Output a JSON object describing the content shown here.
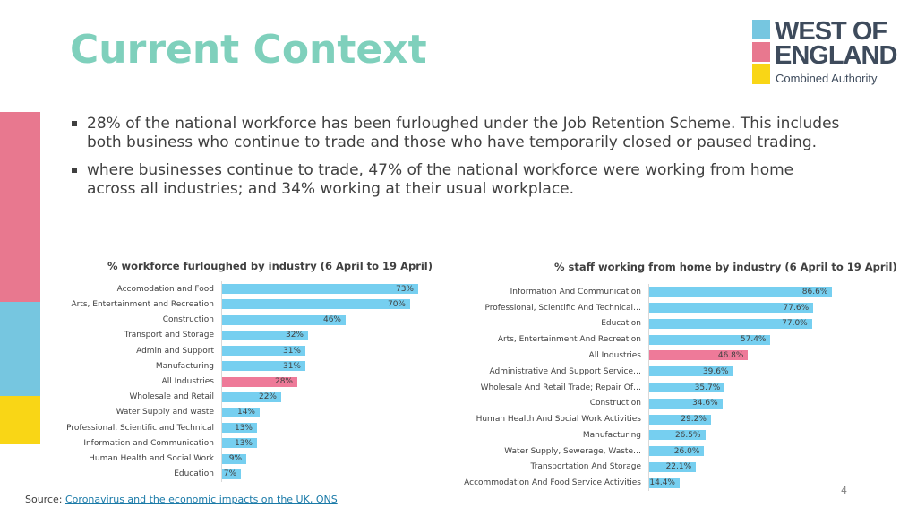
{
  "slide": {
    "title": "Current Context",
    "page_number": "4"
  },
  "logo": {
    "line1": "WEST OF",
    "line2": "ENGLAND",
    "line3": "Combined Authority"
  },
  "bullets": [
    "28% of the national workforce has been furloughed under the Job Retention Scheme. This includes both business who continue to trade and those who have temporarily closed or paused trading.",
    "where businesses continue to trade, 47% of the national workforce were working from home across all industries; and 34% working at their usual workplace."
  ],
  "source": {
    "label": "Source:",
    "link_text": "Coronavirus and the economic impacts on the UK, ONS"
  },
  "colors": {
    "bar": "#76cff0",
    "highlight": "#ee7a99",
    "title": "#7fd0bc"
  },
  "chart_data": [
    {
      "type": "bar",
      "orientation": "horizontal",
      "title": "% workforce furloughed by industry (6 April to 19 April)",
      "categories": [
        "Accomodation and Food",
        "Arts, Entertainment and Recreation",
        "Construction",
        "Transport and Storage",
        "Admin and Support",
        "Manufacturing",
        "All Industries",
        "Wholesale and Retail",
        "Water Supply and waste",
        "Professional, Scientific and Technical",
        "Information and Communication",
        "Human Health and Social Work",
        "Education"
      ],
      "values": [
        73,
        70,
        46,
        32,
        31,
        31,
        28,
        22,
        14,
        13,
        13,
        9,
        7
      ],
      "labels": [
        "73%",
        "70%",
        "46%",
        "32%",
        "31%",
        "31%",
        "28%",
        "22%",
        "14%",
        "13%",
        "13%",
        "9%",
        "7%"
      ],
      "highlight": "All Industries",
      "xlim": [
        0,
        100
      ]
    },
    {
      "type": "bar",
      "orientation": "horizontal",
      "title": "% staff working from home by industry (6 April to 19 April)",
      "categories": [
        "Information And Communication",
        "Professional, Scientific And Technical…",
        "Education",
        "Arts, Entertainment And Recreation",
        "All Industries",
        "Administrative And Support Service…",
        "Wholesale And Retail Trade; Repair Of…",
        "Construction",
        "Human Health And Social Work Activities",
        "Manufacturing",
        "Water Supply, Sewerage, Waste…",
        "Transportation And Storage",
        "Accommodation And Food Service Activities"
      ],
      "values": [
        86.6,
        77.6,
        77.0,
        57.4,
        46.8,
        39.6,
        35.7,
        34.6,
        29.2,
        26.5,
        26.0,
        22.1,
        14.4
      ],
      "labels": [
        "86.6%",
        "77.6%",
        "77.0%",
        "57.4%",
        "46.8%",
        "39.6%",
        "35.7%",
        "34.6%",
        "29.2%",
        "26.5%",
        "26.0%",
        "22.1%",
        "14.4%"
      ],
      "highlight": "All Industries",
      "xlim": [
        0,
        100
      ]
    }
  ]
}
